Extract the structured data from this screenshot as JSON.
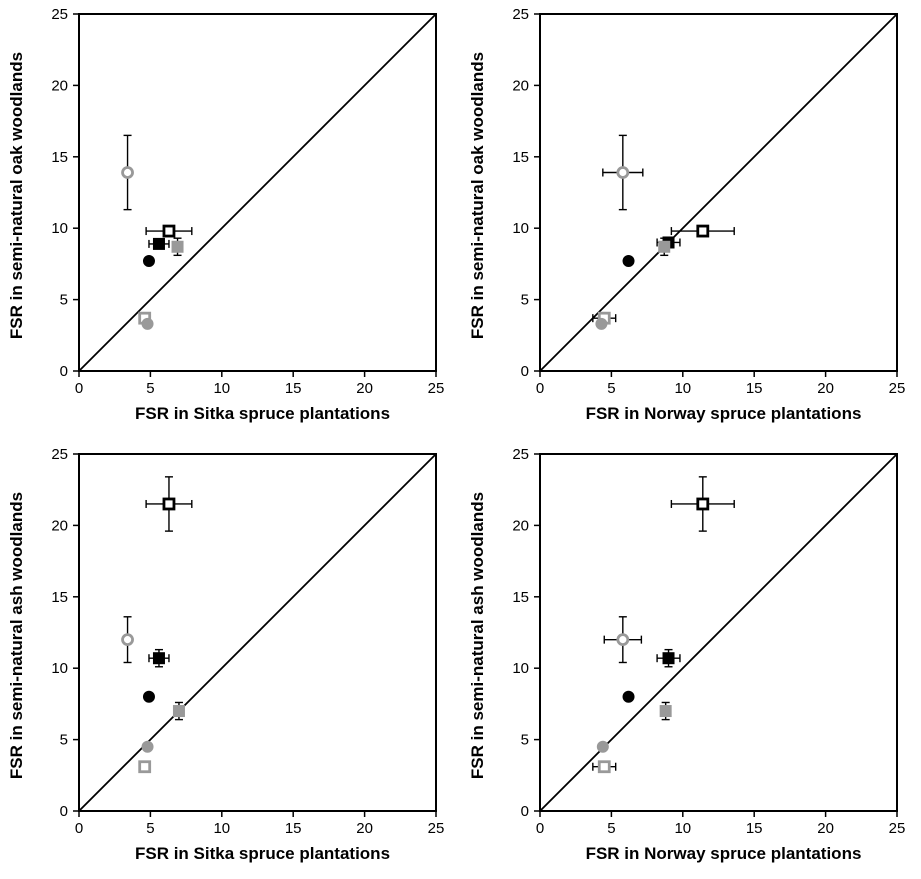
{
  "legend": [],
  "chart_data": [
    {
      "type": "scatter",
      "xlabel": "FSR in Sitka spruce plantations",
      "ylabel": "FSR in semi-natural oak woodlands",
      "xlim": [
        0,
        25
      ],
      "ylim": [
        0,
        25
      ],
      "xticks": [
        "0",
        "5",
        "10",
        "15",
        "20",
        "25"
      ],
      "yticks": [
        "0",
        "5",
        "10",
        "15",
        "20",
        "25"
      ],
      "reference_line": "1:1",
      "points": [
        {
          "marker": "circle",
          "fill": "#ffffff",
          "stroke": "#999999",
          "x": 3.4,
          "y": 13.9,
          "y_err": 2.6
        },
        {
          "marker": "square",
          "fill": "#ffffff",
          "stroke": "#000000",
          "x": 6.3,
          "y": 9.8,
          "x_err": 1.6
        },
        {
          "marker": "square",
          "fill": "#000000",
          "stroke": "#000000",
          "x": 5.6,
          "y": 8.9,
          "x_err": 0.7
        },
        {
          "marker": "square",
          "fill": "#999999",
          "stroke": "#999999",
          "x": 6.9,
          "y": 8.7,
          "y_err": 0.6
        },
        {
          "marker": "circle",
          "fill": "#000000",
          "stroke": "#000000",
          "x": 4.9,
          "y": 7.7
        },
        {
          "marker": "square",
          "fill": "#ffffff",
          "stroke": "#999999",
          "x": 4.6,
          "y": 3.7
        },
        {
          "marker": "circle",
          "fill": "#999999",
          "stroke": "#999999",
          "x": 4.8,
          "y": 3.3
        }
      ]
    },
    {
      "type": "scatter",
      "xlabel": "FSR in Norway spruce plantations",
      "ylabel": "FSR in semi-natural oak woodlands",
      "xlim": [
        0,
        25
      ],
      "ylim": [
        0,
        25
      ],
      "xticks": [
        "0",
        "5",
        "10",
        "15",
        "20",
        "25"
      ],
      "yticks": [
        "0",
        "5",
        "10",
        "15",
        "20",
        "25"
      ],
      "reference_line": "1:1",
      "points": [
        {
          "marker": "circle",
          "fill": "#ffffff",
          "stroke": "#999999",
          "x": 5.8,
          "y": 13.9,
          "x_err": 1.4,
          "y_err": 2.6
        },
        {
          "marker": "square",
          "fill": "#ffffff",
          "stroke": "#000000",
          "x": 11.4,
          "y": 9.8,
          "x_err": 2.2
        },
        {
          "marker": "square",
          "fill": "#000000",
          "stroke": "#000000",
          "x": 9.0,
          "y": 9.0,
          "x_err": 0.8
        },
        {
          "marker": "square",
          "fill": "#999999",
          "stroke": "#999999",
          "x": 8.7,
          "y": 8.7,
          "y_err": 0.6
        },
        {
          "marker": "circle",
          "fill": "#000000",
          "stroke": "#000000",
          "x": 6.2,
          "y": 7.7
        },
        {
          "marker": "square",
          "fill": "#ffffff",
          "stroke": "#999999",
          "x": 4.5,
          "y": 3.7,
          "x_err": 0.8
        },
        {
          "marker": "circle",
          "fill": "#999999",
          "stroke": "#999999",
          "x": 4.3,
          "y": 3.3
        }
      ]
    },
    {
      "type": "scatter",
      "xlabel": "FSR in Sitka spruce plantations",
      "ylabel": "FSR in semi-natural ash woodlands",
      "xlim": [
        0,
        25
      ],
      "ylim": [
        0,
        25
      ],
      "xticks": [
        "0",
        "5",
        "10",
        "15",
        "20",
        "25"
      ],
      "yticks": [
        "0",
        "5",
        "10",
        "15",
        "20",
        "25"
      ],
      "reference_line": "1:1",
      "points": [
        {
          "marker": "circle",
          "fill": "#ffffff",
          "stroke": "#999999",
          "x": 3.4,
          "y": 12.0,
          "y_err": 1.6
        },
        {
          "marker": "square",
          "fill": "#ffffff",
          "stroke": "#000000",
          "x": 6.3,
          "y": 21.5,
          "x_err": 1.6,
          "y_err": 1.9
        },
        {
          "marker": "square",
          "fill": "#000000",
          "stroke": "#000000",
          "x": 5.6,
          "y": 10.7,
          "x_err": 0.7,
          "y_err": 0.6
        },
        {
          "marker": "square",
          "fill": "#999999",
          "stroke": "#999999",
          "x": 7.0,
          "y": 7.0,
          "y_err": 0.6
        },
        {
          "marker": "circle",
          "fill": "#000000",
          "stroke": "#000000",
          "x": 4.9,
          "y": 8.0
        },
        {
          "marker": "square",
          "fill": "#ffffff",
          "stroke": "#999999",
          "x": 4.6,
          "y": 3.1
        },
        {
          "marker": "circle",
          "fill": "#999999",
          "stroke": "#999999",
          "x": 4.8,
          "y": 4.5
        }
      ]
    },
    {
      "type": "scatter",
      "xlabel": "FSR in Norway spruce plantations",
      "ylabel": "FSR in semi-natural ash woodlands",
      "xlim": [
        0,
        25
      ],
      "ylim": [
        0,
        25
      ],
      "xticks": [
        "0",
        "5",
        "10",
        "15",
        "20",
        "25"
      ],
      "yticks": [
        "0",
        "5",
        "10",
        "15",
        "20",
        "25"
      ],
      "reference_line": "1:1",
      "points": [
        {
          "marker": "circle",
          "fill": "#ffffff",
          "stroke": "#999999",
          "x": 5.8,
          "y": 12.0,
          "x_err": 1.3,
          "y_err": 1.6
        },
        {
          "marker": "square",
          "fill": "#ffffff",
          "stroke": "#000000",
          "x": 11.4,
          "y": 21.5,
          "x_err": 2.2,
          "y_err": 1.9
        },
        {
          "marker": "square",
          "fill": "#000000",
          "stroke": "#000000",
          "x": 9.0,
          "y": 10.7,
          "x_err": 0.8,
          "y_err": 0.6
        },
        {
          "marker": "square",
          "fill": "#999999",
          "stroke": "#999999",
          "x": 8.8,
          "y": 7.0,
          "y_err": 0.6
        },
        {
          "marker": "circle",
          "fill": "#000000",
          "stroke": "#000000",
          "x": 6.2,
          "y": 8.0
        },
        {
          "marker": "square",
          "fill": "#ffffff",
          "stroke": "#999999",
          "x": 4.5,
          "y": 3.1,
          "x_err": 0.8
        },
        {
          "marker": "circle",
          "fill": "#999999",
          "stroke": "#999999",
          "x": 4.4,
          "y": 4.5
        }
      ]
    }
  ]
}
